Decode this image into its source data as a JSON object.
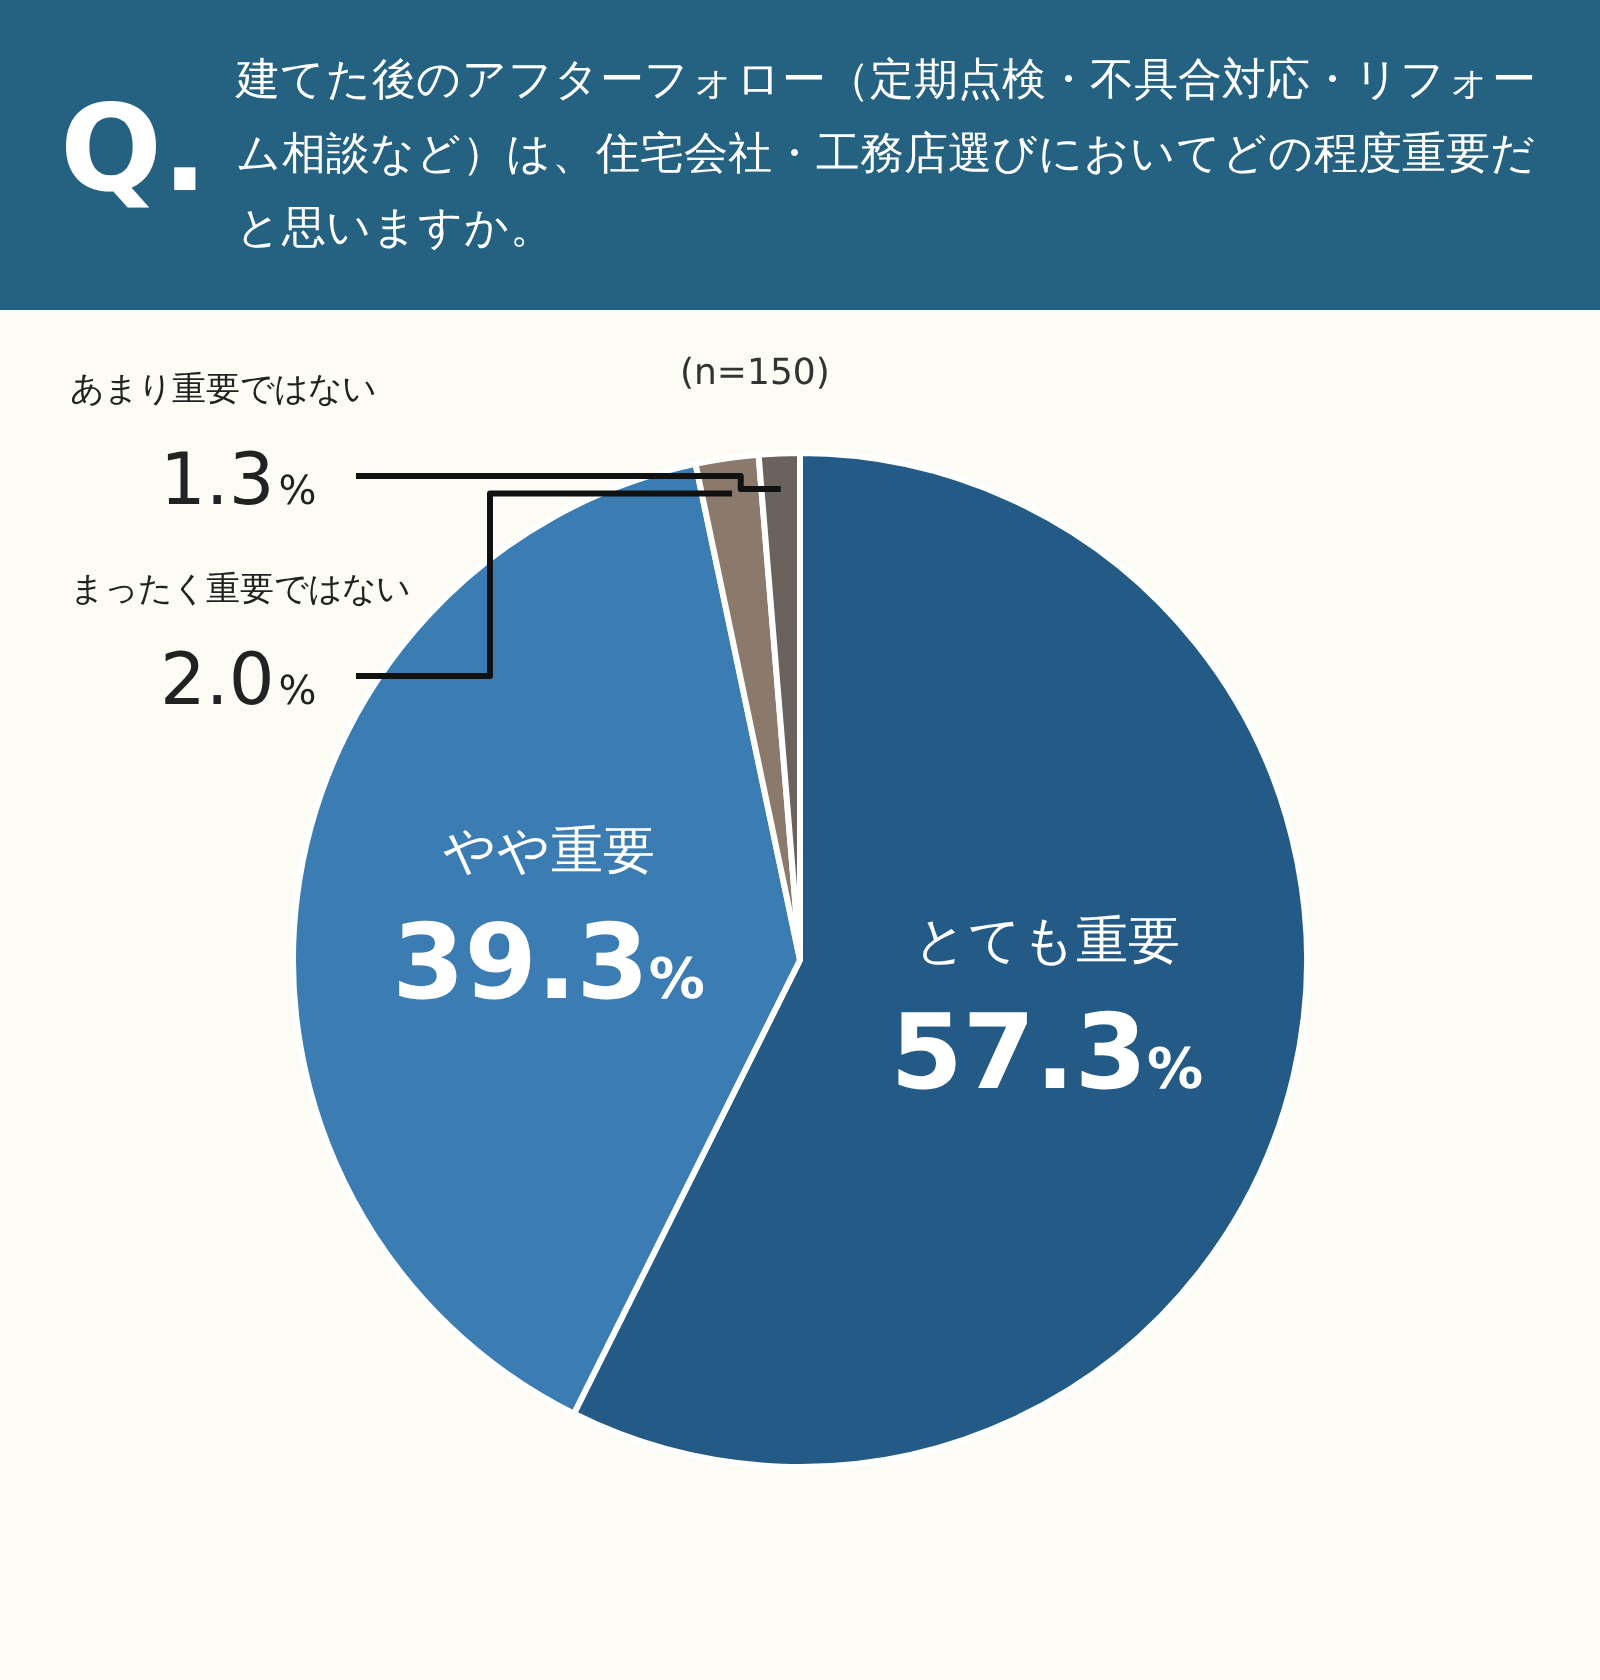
{
  "chart_data": {
    "type": "pie",
    "title": "建てた後のアフターフォロー（定期点検・不具合対応・リフォーム相談など）は、住宅会社・工務店選びにおいてどの程度重要だと思いますか。",
    "annotations": [
      "Q.",
      "(n=150)"
    ],
    "categories": [
      "とても重要",
      "やや重要",
      "まったく重要ではない",
      "あまり重要ではない"
    ],
    "values": [
      57.3,
      39.3,
      2.0,
      1.3
    ],
    "colors": [
      "#245a86",
      "#3b7db3",
      "#8b7a6b",
      "#6a635d"
    ],
    "value_labels": [
      "57.3%",
      "39.3%",
      "2.0%",
      "1.3%"
    ],
    "legend": false
  }
}
